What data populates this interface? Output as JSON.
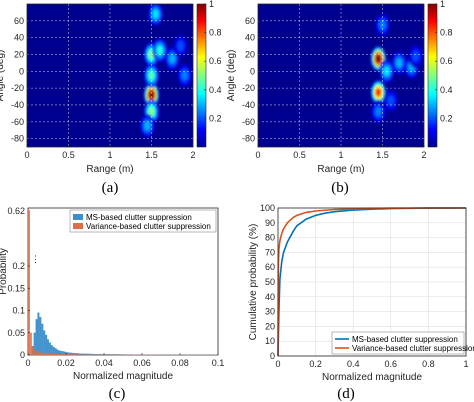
{
  "figure_captions": [
    "(a)",
    "(b)",
    "(c)",
    "(d)"
  ],
  "chart_data": [
    {
      "panel": "(a)",
      "type": "heatmap",
      "xlabel": "Range (m)",
      "ylabel": "Angle (deg)",
      "xlim": [
        0,
        2
      ],
      "ylim": [
        -90,
        80
      ],
      "x_ticks": [
        "0",
        "0.5",
        "1",
        "1.5",
        "2"
      ],
      "y_ticks": [
        "-80",
        "-60",
        "-40",
        "-20",
        "0",
        "20",
        "40",
        "60"
      ],
      "colorbar": {
        "min": 0,
        "max": 1,
        "ticks": [
          "0.2",
          "0.4",
          "0.6",
          "0.8",
          "1"
        ],
        "colormap": "jet"
      },
      "grid": true,
      "hotspots": [
        {
          "range_m": 1.5,
          "angle_deg": -28,
          "value": 1.0
        },
        {
          "range_m": 1.5,
          "angle_deg": -5,
          "value": 0.45
        },
        {
          "range_m": 1.5,
          "angle_deg": 20,
          "value": 0.5
        },
        {
          "range_m": 1.5,
          "angle_deg": -48,
          "value": 0.5
        },
        {
          "range_m": 1.6,
          "angle_deg": 25,
          "value": 0.4
        },
        {
          "range_m": 1.55,
          "angle_deg": 68,
          "value": 0.35
        },
        {
          "range_m": 1.75,
          "angle_deg": 15,
          "value": 0.3
        },
        {
          "range_m": 1.9,
          "angle_deg": -5,
          "value": 0.25
        },
        {
          "range_m": 1.85,
          "angle_deg": 30,
          "value": 0.2
        },
        {
          "range_m": 1.45,
          "angle_deg": -65,
          "value": 0.3
        }
      ]
    },
    {
      "panel": "(b)",
      "type": "heatmap",
      "xlabel": "Range (m)",
      "ylabel": "Angle (deg)",
      "xlim": [
        0,
        2
      ],
      "ylim": [
        -90,
        80
      ],
      "x_ticks": [
        "0",
        "0.5",
        "1",
        "1.5",
        "2"
      ],
      "y_ticks": [
        "-80",
        "-60",
        "-40",
        "-20",
        "0",
        "20",
        "40",
        "60"
      ],
      "colorbar": {
        "min": 0,
        "max": 1,
        "ticks": [
          "0.2",
          "0.4",
          "0.6",
          "0.8",
          "1"
        ],
        "colormap": "jet"
      },
      "grid": true,
      "hotspots": [
        {
          "range_m": 1.45,
          "angle_deg": 15,
          "value": 1.0
        },
        {
          "range_m": 1.45,
          "angle_deg": -25,
          "value": 0.85
        },
        {
          "range_m": 1.55,
          "angle_deg": 0,
          "value": 0.35
        },
        {
          "range_m": 1.7,
          "angle_deg": 10,
          "value": 0.3
        },
        {
          "range_m": 1.85,
          "angle_deg": 5,
          "value": 0.3
        },
        {
          "range_m": 1.5,
          "angle_deg": 55,
          "value": 0.25
        },
        {
          "range_m": 1.45,
          "angle_deg": -48,
          "value": 0.25
        },
        {
          "range_m": 1.6,
          "angle_deg": -35,
          "value": 0.2
        },
        {
          "range_m": 1.9,
          "angle_deg": 18,
          "value": 0.2
        }
      ]
    },
    {
      "panel": "(c)",
      "type": "bar",
      "xlabel": "Normalized magnitude",
      "ylabel": "Probability",
      "xlim": [
        0,
        0.1
      ],
      "ylim": [
        0,
        0.62
      ],
      "x_ticks": [
        "0",
        "0.02",
        "0.04",
        "0.06",
        "0.08",
        "0.1"
      ],
      "y_ticks": [
        "0",
        "0.05",
        "0.1",
        "0.15",
        "0.2"
      ],
      "y_top_label": "0.62",
      "y_axis_break": true,
      "legend": "top-right",
      "bin_width": 0.001,
      "series": [
        {
          "name": "MS-based clutter suppression",
          "color": "#3d8fcb",
          "bin_start": 0.002,
          "values": [
            0.02,
            0.05,
            0.08,
            0.095,
            0.085,
            0.07,
            0.055,
            0.045,
            0.035,
            0.028,
            0.022,
            0.018,
            0.015,
            0.012,
            0.01,
            0.009,
            0.008,
            0.007,
            0.006,
            0.0055,
            0.005,
            0.0045,
            0.004,
            0.0038,
            0.0035,
            0.0032,
            0.003,
            0.0028,
            0.0026,
            0.0025,
            0.0024,
            0.0023,
            0.0022,
            0.0021,
            0.002,
            0.0019,
            0.0018,
            0.0018,
            0.0017,
            0.0016,
            0.0016,
            0.0015,
            0.0015,
            0.0014,
            0.0014,
            0.0013,
            0.0013,
            0.0012,
            0.0012,
            0.0012,
            0.0011,
            0.0011,
            0.0011,
            0.001,
            0.001,
            0.001,
            0.001,
            0.0009,
            0.0009,
            0.0009,
            0.0009,
            0.0008,
            0.0008,
            0.0008,
            0.0008,
            0.0008,
            0.0007,
            0.0007,
            0.0007,
            0.0007,
            0.0007,
            0.0006,
            0.0006,
            0.0006,
            0.0006,
            0.0006,
            0.0006,
            0.0005,
            0.0005,
            0.0005,
            0.0005,
            0.0005,
            0.0005,
            0.0005,
            0.0004,
            0.0004,
            0.0004,
            0.0004,
            0.0004,
            0.0004,
            0.0004,
            0.0004,
            0.0003,
            0.0003,
            0.0003,
            0.0003,
            0.0003,
            0.0003
          ]
        },
        {
          "name": "Variance-based clutter suppression",
          "color": "#dd6e4a",
          "bin_start": 0.0,
          "values": [
            0.62,
            0.05,
            0.02,
            0.012,
            0.009,
            0.007,
            0.006,
            0.005,
            0.0045,
            0.004,
            0.0035,
            0.003,
            0.0028,
            0.0025,
            0.0023,
            0.002,
            0.0019,
            0.0018,
            0.0017,
            0.0016,
            0.0015,
            0.0014,
            0.0013,
            0.0012,
            0.0012,
            0.0011,
            0.0011,
            0.001,
            0.001,
            0.001,
            0.0009,
            0.0009,
            0.0009,
            0.0008,
            0.0008,
            0.0008,
            0.0008,
            0.0007,
            0.0007,
            0.0007,
            0.0007,
            0.0006,
            0.0006,
            0.0006,
            0.0006,
            0.0006,
            0.0005,
            0.0005,
            0.0005,
            0.0005,
            0.0005,
            0.0005,
            0.0004,
            0.0004,
            0.0004,
            0.0004,
            0.0004,
            0.0004,
            0.0004,
            0.0003,
            0.0003,
            0.0003,
            0.0003,
            0.0003,
            0.0003,
            0.0003,
            0.0003,
            0.0003,
            0.0002,
            0.0002,
            0.0002,
            0.0002,
            0.0002,
            0.0002,
            0.0002,
            0.0002,
            0.0002,
            0.0002,
            0.0002,
            0.0002,
            0.0002,
            0.0002,
            0.0002,
            0.0002,
            0.0002,
            0.0002,
            0.0002,
            0.0002,
            0.0002,
            0.0002,
            0.0002,
            0.0002,
            0.0002,
            0.0002,
            0.0002,
            0.0002,
            0.0002,
            0.0002,
            0.0002,
            0.0002
          ]
        }
      ]
    },
    {
      "panel": "(d)",
      "type": "line",
      "xlabel": "Normalized magnitude",
      "ylabel": "Cumulative probability (%)",
      "xlim": [
        0,
        1
      ],
      "ylim": [
        0,
        100
      ],
      "x_ticks": [
        "0",
        "0.2",
        "0.4",
        "0.6",
        "0.8",
        "1"
      ],
      "y_ticks": [
        "0",
        "10",
        "20",
        "30",
        "40",
        "50",
        "60",
        "70",
        "80",
        "90",
        "100"
      ],
      "grid": true,
      "legend": "bottom-right",
      "series": [
        {
          "name": "MS-based clutter suppression",
          "color": "#0072bd",
          "x": [
            0,
            0.005,
            0.01,
            0.02,
            0.03,
            0.05,
            0.08,
            0.1,
            0.15,
            0.2,
            0.25,
            0.3,
            0.4,
            0.5,
            0.6,
            0.8,
            1.0
          ],
          "y": [
            0,
            30,
            52,
            64,
            70,
            77,
            84,
            88,
            92.5,
            95,
            96.5,
            97.5,
            98.6,
            99.2,
            99.6,
            99.9,
            100
          ]
        },
        {
          "name": "Variance-based clutter suppression",
          "color": "#d95319",
          "x": [
            0,
            0.002,
            0.005,
            0.01,
            0.02,
            0.03,
            0.05,
            0.08,
            0.1,
            0.15,
            0.2,
            0.3,
            0.4,
            0.5,
            0.6,
            0.8,
            1.0
          ],
          "y": [
            0,
            62,
            72,
            78,
            83,
            86,
            90,
            93.5,
            95,
            97,
            98,
            99,
            99.4,
            99.7,
            99.85,
            99.95,
            100
          ]
        }
      ]
    }
  ]
}
